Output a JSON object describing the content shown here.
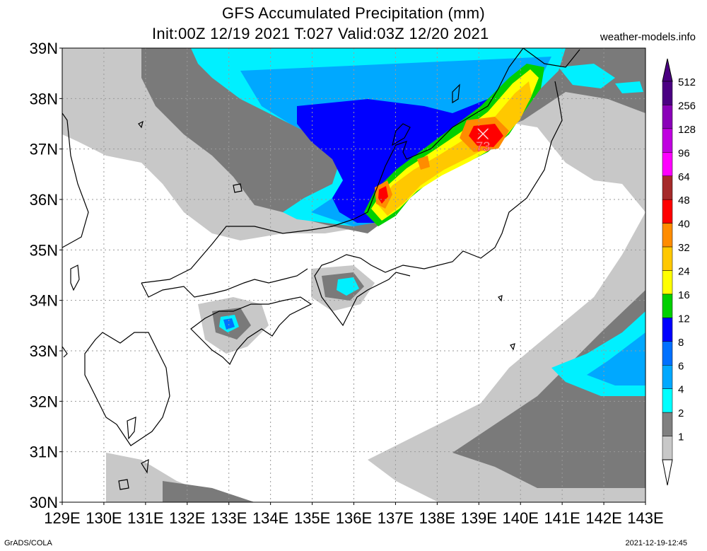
{
  "title": {
    "line1": "GFS Accumulated Precipitation (mm)",
    "line2": "Init:00Z 12/19 2021 T:027 Valid:03Z 12/20 2021"
  },
  "site": "weather-models.info",
  "footer": {
    "left": "GrADS/COLA",
    "right": "2021-12-19-12:45"
  },
  "map": {
    "lat_labels": [
      "39N",
      "38N",
      "37N",
      "36N",
      "35N",
      "34N",
      "33N",
      "32N",
      "31N",
      "30N"
    ],
    "lon_labels": [
      "129E",
      "130E",
      "131E",
      "132E",
      "133E",
      "134E",
      "135E",
      "136E",
      "137E",
      "138E",
      "139E",
      "140E",
      "141E",
      "142E",
      "143E"
    ],
    "lat_range": [
      30,
      39
    ],
    "lon_range": [
      129,
      143
    ],
    "max_marker": {
      "label": "73",
      "lon": 139.1,
      "lat": 37.3
    }
  },
  "colorbar": {
    "levels": [
      "512",
      "256",
      "128",
      "96",
      "64",
      "48",
      "40",
      "32",
      "24",
      "16",
      "12",
      "8",
      "6",
      "4",
      "2",
      "1"
    ],
    "colors": [
      "#4b0082",
      "#8a00b8",
      "#c000e0",
      "#ff00ff",
      "#a52a2a",
      "#ff0000",
      "#ff8c00",
      "#ffc800",
      "#ffff00",
      "#00d000",
      "#0000ff",
      "#0070ff",
      "#00a8ff",
      "#00ffff",
      "#808080",
      "#c8c8c8"
    ]
  }
}
